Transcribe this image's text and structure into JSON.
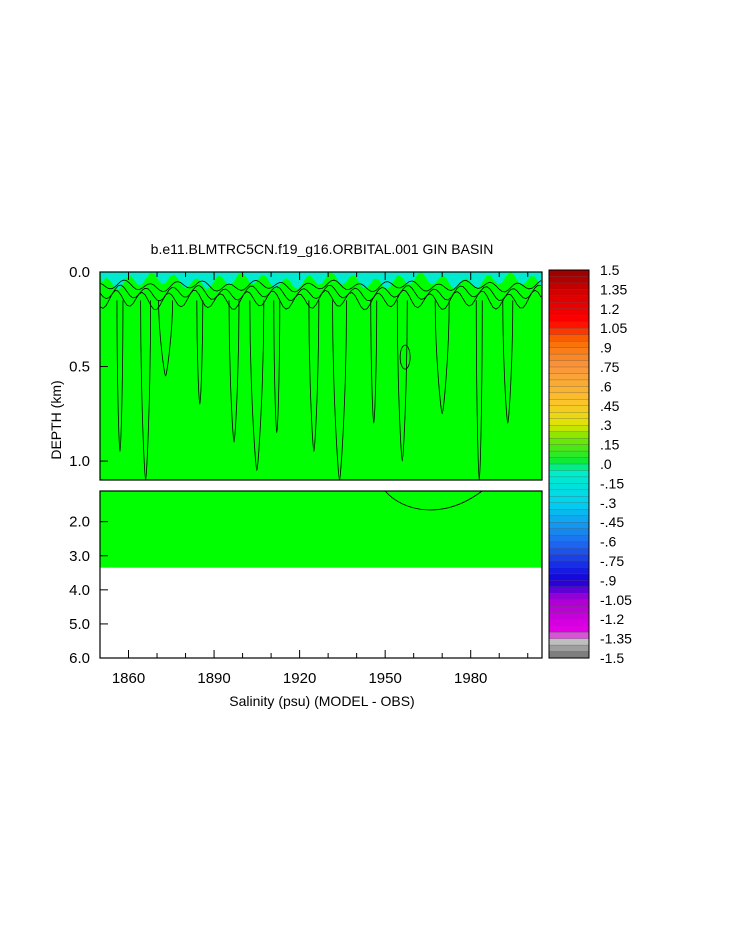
{
  "chart_data": {
    "type": "heatmap",
    "title": "b.e11.BLMTRC5CN.f19_g16.ORBITAL.001 GIN BASIN",
    "xlabel": "Salinity (psu) (MODEL - OBS)",
    "ylabel": "DEPTH (km)",
    "x_range": [
      1850,
      2005
    ],
    "x_ticks": [
      1860,
      1890,
      1920,
      1950,
      1980
    ],
    "x_tick_labels": [
      "1860",
      "1890",
      "1920",
      "1950",
      "1980"
    ],
    "upper_panel": {
      "depth_range_km": [
        0.0,
        1.1
      ],
      "y_ticks": [
        0.0,
        0.5,
        1.0
      ],
      "y_tick_labels": [
        "0.0",
        "0.5",
        "1.0"
      ]
    },
    "lower_panel": {
      "depth_range_km": [
        1.1,
        6.0
      ],
      "y_ticks": [
        2.0,
        3.0,
        4.0,
        5.0,
        6.0
      ],
      "y_tick_labels": [
        "2.0",
        "3.0",
        "4.0",
        "5.0",
        "6.0"
      ],
      "data_bottom_km": 3.35
    },
    "colorbar": {
      "min": -1.5,
      "max": 1.5,
      "step": 0.05,
      "labels": [
        "1.5",
        "1.35",
        "1.2",
        "1.05",
        ".9",
        ".75",
        ".6",
        ".45",
        ".3",
        ".15",
        ".0",
        "-.15",
        "-.3",
        "-.45",
        "-.6",
        "-.75",
        "-.9",
        "-1.05",
        "-1.2",
        "-1.35",
        "-1.5"
      ],
      "label_values": [
        1.5,
        1.35,
        1.2,
        1.05,
        0.9,
        0.75,
        0.6,
        0.45,
        0.3,
        0.15,
        0.0,
        -0.15,
        -0.3,
        -0.45,
        -0.6,
        -0.75,
        -0.9,
        -1.05,
        -1.2,
        -1.35,
        -1.5
      ]
    },
    "dominant_field_value": 0.1,
    "surface_layer_value": -0.1,
    "colors": {
      "field_green": "#00ff00",
      "contour": "#000000",
      "surface_cyan": "#00e6c8"
    }
  }
}
